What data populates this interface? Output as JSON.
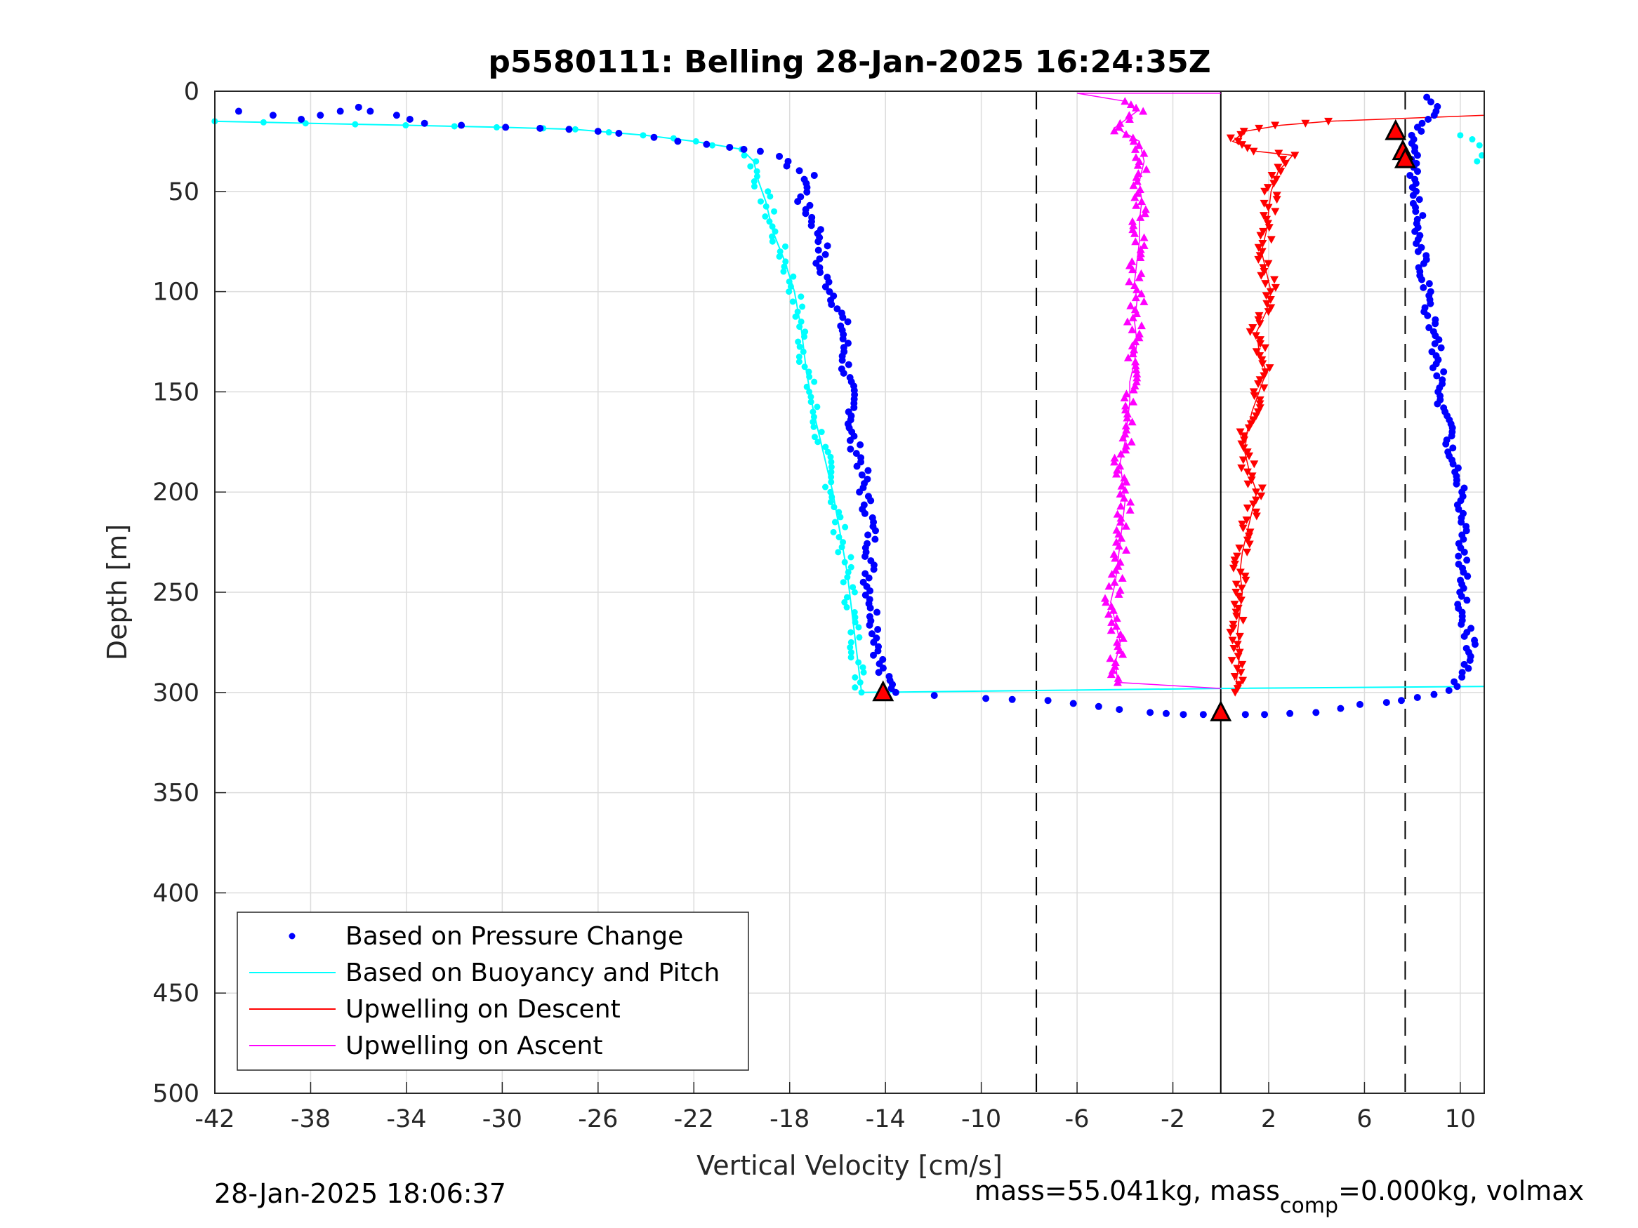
{
  "chart_data": {
    "type": "scatter",
    "title": "p5580111: Belling 28-Jan-2025 16:24:35Z",
    "xlabel": "Vertical Velocity [cm/s]",
    "ylabel": "Depth [m]",
    "xlim": [
      -42,
      11
    ],
    "ylim": [
      0,
      500
    ],
    "y_reversed": true,
    "grid": true,
    "xticks": [
      -42,
      -38,
      -34,
      -30,
      -26,
      -22,
      -18,
      -14,
      -10,
      -6,
      -2,
      2,
      6,
      10
    ],
    "yticks": [
      0,
      50,
      100,
      150,
      200,
      250,
      300,
      350,
      400,
      450,
      500
    ],
    "reference_lines": [
      {
        "x": -7.7,
        "style": "dashed",
        "color": "#000000"
      },
      {
        "x": 0,
        "style": "solid",
        "color": "#000000"
      },
      {
        "x": 7.7,
        "style": "dashed",
        "color": "#000000"
      }
    ],
    "legend_position": "bottom-left",
    "series": [
      {
        "name": "Based on Pressure Change",
        "color": "#0000ff",
        "marker": "dot",
        "descent": [
          [
            -41,
            10
          ],
          [
            -38.2,
            14
          ],
          [
            -36,
            8
          ],
          [
            -33.2,
            16
          ],
          [
            -30,
            18
          ],
          [
            -27,
            19
          ],
          [
            -25,
            21
          ],
          [
            -22.5,
            25
          ],
          [
            -20.5,
            28
          ],
          [
            -19,
            30
          ],
          [
            -18.3,
            35
          ],
          [
            -17.2,
            42
          ],
          [
            -17.3,
            48
          ],
          [
            -17.5,
            55
          ],
          [
            -17,
            65
          ],
          [
            -16.6,
            75
          ],
          [
            -16.8,
            88
          ],
          [
            -16.2,
            100
          ],
          [
            -15.8,
            115
          ],
          [
            -15.7,
            130
          ],
          [
            -15.6,
            145
          ],
          [
            -15.3,
            160
          ],
          [
            -15.5,
            170
          ],
          [
            -15.0,
            185
          ],
          [
            -14.9,
            200
          ],
          [
            -14.6,
            215
          ],
          [
            -14.6,
            230
          ],
          [
            -14.7,
            245
          ],
          [
            -14.5,
            260
          ],
          [
            -14.3,
            275
          ],
          [
            -14.2,
            290
          ],
          [
            -13.5,
            300
          ],
          [
            -10,
            303
          ],
          [
            -7,
            304
          ],
          [
            -5,
            307
          ],
          [
            -3,
            310
          ],
          [
            -1.5,
            311
          ],
          [
            0,
            311
          ]
        ],
        "ascent": [
          [
            0,
            311
          ],
          [
            2,
            311
          ],
          [
            4,
            310
          ],
          [
            6,
            306
          ],
          [
            7.5,
            304
          ],
          [
            9,
            301
          ],
          [
            9.8,
            297
          ],
          [
            10.2,
            290
          ],
          [
            10.5,
            280
          ],
          [
            10.3,
            270
          ],
          [
            10.0,
            260
          ],
          [
            10.1,
            250
          ],
          [
            10.2,
            240
          ],
          [
            10.0,
            230
          ],
          [
            10.2,
            215
          ],
          [
            10.0,
            200
          ],
          [
            9.8,
            190
          ],
          [
            9.6,
            180
          ],
          [
            9.5,
            170
          ],
          [
            9.3,
            160
          ],
          [
            9.2,
            150
          ],
          [
            9.1,
            140
          ],
          [
            9.0,
            130
          ],
          [
            8.9,
            120
          ],
          [
            8.7,
            110
          ],
          [
            8.6,
            100
          ],
          [
            8.5,
            90
          ],
          [
            8.4,
            80
          ],
          [
            8.3,
            70
          ],
          [
            8.3,
            60
          ],
          [
            8.2,
            50
          ],
          [
            8.1,
            40
          ],
          [
            8.0,
            30
          ],
          [
            8.2,
            20
          ],
          [
            9.2,
            10
          ],
          [
            8.6,
            3
          ]
        ]
      },
      {
        "name": "Based on Buoyancy and Pitch",
        "color": "#00ffff",
        "marker": "dot-line",
        "descent": [
          [
            -42,
            15
          ],
          [
            -38,
            16
          ],
          [
            -34,
            17
          ],
          [
            -30,
            18
          ],
          [
            -27,
            19
          ],
          [
            -24,
            22
          ],
          [
            -22,
            25
          ],
          [
            -20,
            29
          ],
          [
            -19.5,
            35
          ],
          [
            -19.3,
            45
          ],
          [
            -19,
            55
          ],
          [
            -18.7,
            70
          ],
          [
            -18.2,
            85
          ],
          [
            -17.8,
            100
          ],
          [
            -17.5,
            120
          ],
          [
            -17.3,
            140
          ],
          [
            -17.0,
            160
          ],
          [
            -16.6,
            180
          ],
          [
            -16.2,
            200
          ],
          [
            -15.9,
            220
          ],
          [
            -15.6,
            240
          ],
          [
            -15.4,
            260
          ],
          [
            -15.2,
            280
          ],
          [
            -15.0,
            300
          ],
          [
            0,
            298
          ],
          [
            11,
            297
          ]
        ],
        "ascent": [
          [
            10.0,
            22
          ],
          [
            10.5,
            24
          ],
          [
            10.8,
            27
          ],
          [
            10.9,
            32
          ],
          [
            10.7,
            35
          ]
        ]
      },
      {
        "name": "Upwelling on Descent",
        "color": "#ff0000",
        "marker": "triangle-down",
        "values": [
          [
            11,
            3
          ],
          [
            11,
            12
          ],
          [
            4.5,
            15
          ],
          [
            2.5,
            17
          ],
          [
            1,
            20
          ],
          [
            0.5,
            25
          ],
          [
            1.5,
            30
          ],
          [
            3,
            32
          ],
          [
            2.4,
            40
          ],
          [
            2.1,
            50
          ],
          [
            2.0,
            60
          ],
          [
            1.9,
            70
          ],
          [
            1.7,
            80
          ],
          [
            1.9,
            90
          ],
          [
            2.1,
            100
          ],
          [
            1.9,
            110
          ],
          [
            1.5,
            120
          ],
          [
            1.6,
            130
          ],
          [
            1.9,
            140
          ],
          [
            1.6,
            150
          ],
          [
            1.3,
            160
          ],
          [
            1.1,
            170
          ],
          [
            1.0,
            180
          ],
          [
            1.2,
            190
          ],
          [
            1.5,
            200
          ],
          [
            1.3,
            210
          ],
          [
            1.1,
            220
          ],
          [
            0.9,
            230
          ],
          [
            0.8,
            240
          ],
          [
            0.9,
            250
          ],
          [
            0.8,
            260
          ],
          [
            0.7,
            270
          ],
          [
            0.8,
            280
          ],
          [
            0.7,
            290
          ],
          [
            0.6,
            300
          ]
        ]
      },
      {
        "name": "Upwelling on Ascent",
        "color": "#ff00ff",
        "marker": "triangle-up",
        "values": [
          [
            0,
            298
          ],
          [
            -4.3,
            295
          ],
          [
            -4.4,
            285
          ],
          [
            -4.2,
            275
          ],
          [
            -4.4,
            265
          ],
          [
            -4.6,
            255
          ],
          [
            -4.4,
            245
          ],
          [
            -4.3,
            235
          ],
          [
            -4.2,
            225
          ],
          [
            -4.1,
            215
          ],
          [
            -4.0,
            205
          ],
          [
            -4.1,
            195
          ],
          [
            -4.2,
            185
          ],
          [
            -4.0,
            175
          ],
          [
            -3.9,
            165
          ],
          [
            -3.8,
            155
          ],
          [
            -3.8,
            145
          ],
          [
            -3.6,
            135
          ],
          [
            -3.5,
            125
          ],
          [
            -3.6,
            115
          ],
          [
            -3.5,
            105
          ],
          [
            -3.6,
            95
          ],
          [
            -3.5,
            85
          ],
          [
            -3.4,
            75
          ],
          [
            -3.4,
            65
          ],
          [
            -3.3,
            55
          ],
          [
            -3.4,
            45
          ],
          [
            -3.2,
            35
          ],
          [
            -3.4,
            25
          ],
          [
            -4.4,
            18
          ],
          [
            -3.5,
            10
          ],
          [
            -4.0,
            5
          ],
          [
            -6,
            1
          ],
          [
            0,
            1
          ]
        ]
      }
    ],
    "markers": [
      {
        "shape": "triangle",
        "color": "#ff0000",
        "x": -14.1,
        "y": 300
      },
      {
        "shape": "triangle",
        "color": "#ff0000",
        "x": 0,
        "y": 310
      },
      {
        "shape": "triangle",
        "color": "#ff0000",
        "x": 7.3,
        "y": 20
      },
      {
        "shape": "triangle",
        "color": "#ff0000",
        "x": 7.6,
        "y": 30
      },
      {
        "shape": "triangle",
        "color": "#ff0000",
        "x": 7.7,
        "y": 34
      }
    ]
  },
  "footer": {
    "timestamp": "28-Jan-2025 18:06:37",
    "mass_prefix": "mass=55.041kg, mass",
    "mass_sub": "comp",
    "mass_suffix": "=0.000kg, volmax"
  }
}
